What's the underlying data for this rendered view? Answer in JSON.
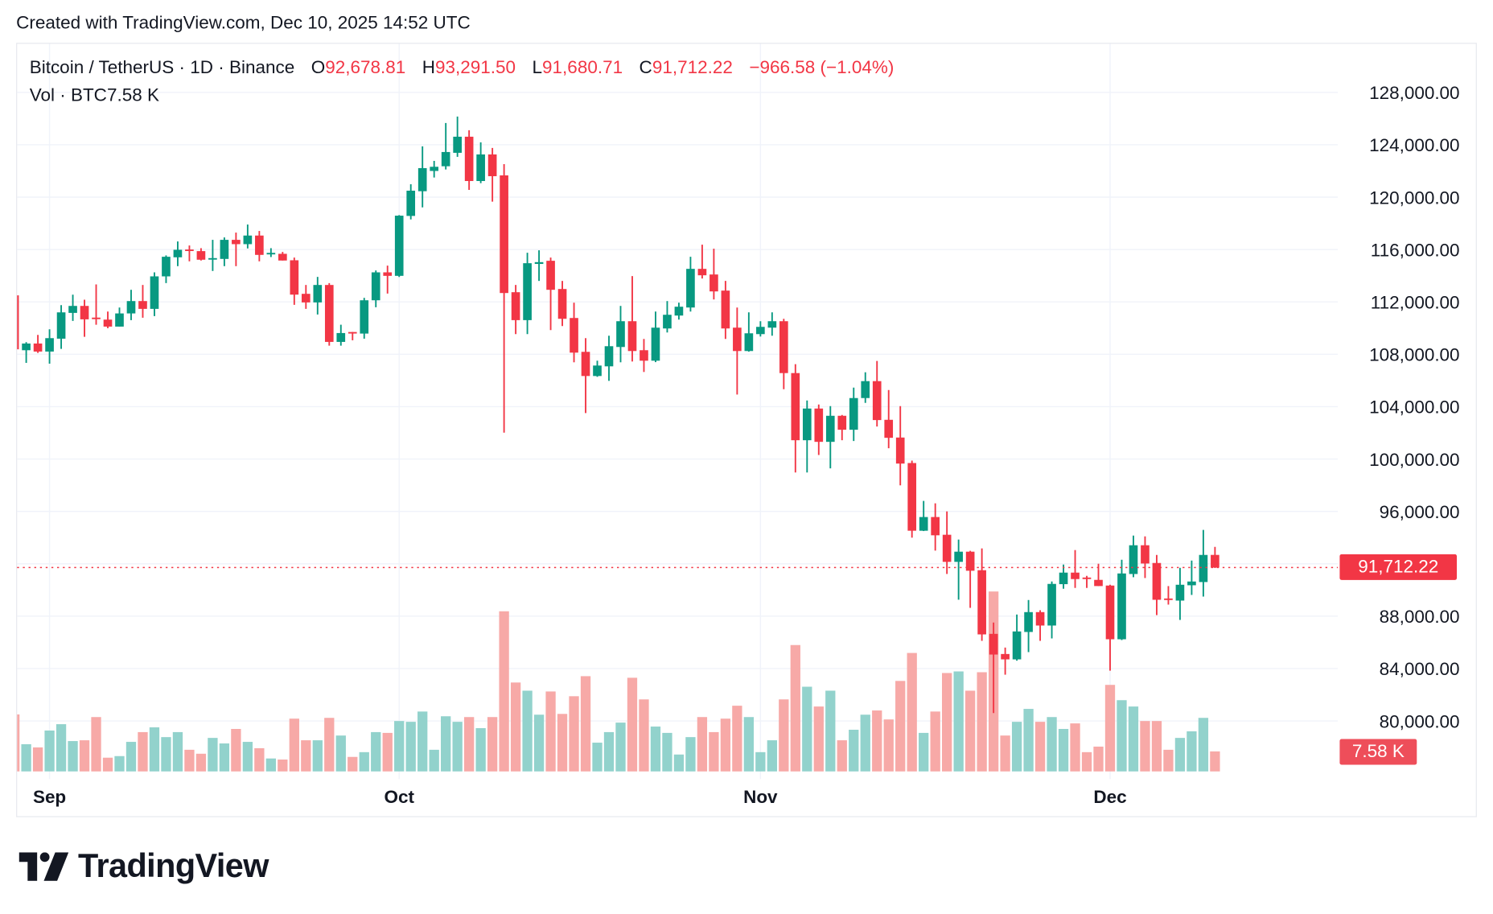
{
  "header": {
    "created_text": "Created with TradingView.com, Dec 10, 2025 14:52 UTC"
  },
  "legend": {
    "symbol": "Bitcoin / TetherUS · 1D · Binance",
    "open_label": "O",
    "open": "92,678.81",
    "high_label": "H",
    "high": "93,291.50",
    "low_label": "L",
    "low": "91,680.71",
    "close_label": "C",
    "close": "91,712.22",
    "change": "−966.58 (−1.04%)",
    "volume_label": "Vol · BTC",
    "volume": "7.58 K"
  },
  "price_tag": "91,712.22",
  "volume_tag": "7.58 K",
  "logo": {
    "text": "TradingView",
    "icon": "tradingview-logo-icon"
  },
  "colors": {
    "up": "#089981",
    "down": "#f23645",
    "up_volume": "#92d2cc",
    "down_volume": "#f7a9a7",
    "grid": "#f0f3fa"
  },
  "chart_data": {
    "type": "candlestick",
    "title": "",
    "interval": "1D",
    "y_axis": {
      "position": "right",
      "range": [
        78000,
        131000
      ],
      "tick_labels": [
        "128,000.00",
        "124,000.00",
        "120,000.00",
        "116,000.00",
        "112,000.00",
        "108,000.00",
        "104,000.00",
        "100,000.00",
        "96,000.00",
        "88,000.00",
        "84,000.00",
        "80,000.00"
      ]
    },
    "x_ticks": [
      {
        "label": "Sep",
        "date": "2025-09-01"
      },
      {
        "label": "Oct",
        "date": "2025-10-01"
      },
      {
        "label": "Nov",
        "date": "2025-11-01"
      },
      {
        "label": "Dec",
        "date": "2025-12-01"
      }
    ],
    "grid": true,
    "last_price": 91712.22,
    "columns": [
      "date",
      "open",
      "high",
      "low",
      "close",
      "volume_k"
    ],
    "rows": [
      [
        "2025-08-29",
        112500,
        112650,
        107350,
        108380,
        21.6
      ],
      [
        "2025-08-30",
        108309,
        108925,
        107345,
        108822,
        10.3
      ],
      [
        "2025-08-31",
        108822,
        109478,
        108104,
        108207,
        9.1
      ],
      [
        "2025-09-01",
        108207,
        109909,
        107284,
        109232,
        15.5
      ],
      [
        "2025-09-02",
        109191,
        111755,
        108412,
        111201,
        17.9
      ],
      [
        "2025-09-03",
        111160,
        112555,
        110545,
        111693,
        11.5
      ],
      [
        "2025-09-04",
        111693,
        112165,
        109335,
        110668,
        11.8
      ],
      [
        "2025-09-05",
        110800,
        113334,
        110258,
        110700,
        20.6
      ],
      [
        "2025-09-06",
        110647,
        111263,
        109991,
        110114,
        5.2
      ],
      [
        "2025-09-07",
        110114,
        111570,
        110114,
        111119,
        5.8
      ],
      [
        "2025-09-08",
        111119,
        112924,
        110606,
        112063,
        11.2
      ],
      [
        "2025-09-09",
        112063,
        113293,
        110791,
        111468,
        14.9
      ],
      [
        "2025-09-10",
        111468,
        114257,
        110914,
        113950,
        16.7
      ],
      [
        "2025-09-11",
        113950,
        115550,
        113437,
        115447,
        13.0
      ],
      [
        "2025-09-12",
        115406,
        116616,
        114729,
        115980,
        14.9
      ],
      [
        "2025-09-13",
        116000,
        116308,
        115098,
        115980,
        8.2
      ],
      [
        "2025-09-14",
        115878,
        116103,
        115160,
        115221,
        6.7
      ],
      [
        "2025-09-15",
        115300,
        116739,
        114360,
        115344,
        12.7
      ],
      [
        "2025-09-16",
        115282,
        116924,
        114729,
        116739,
        10.6
      ],
      [
        "2025-09-17",
        116739,
        117293,
        114729,
        116410,
        16.1
      ],
      [
        "2025-09-18",
        116410,
        117908,
        116083,
        117067,
        11.2
      ],
      [
        "2025-09-19",
        117067,
        117416,
        115098,
        115590,
        8.8
      ],
      [
        "2025-09-20",
        115700,
        116103,
        115426,
        115744,
        4.9
      ],
      [
        "2025-09-21",
        115672,
        115816,
        115160,
        115160,
        4.5
      ],
      [
        "2025-09-22",
        115180,
        115385,
        111775,
        112555,
        20.0
      ],
      [
        "2025-09-23",
        112616,
        113293,
        111468,
        111960,
        11.8
      ],
      [
        "2025-09-24",
        111960,
        113909,
        111037,
        113293,
        11.8
      ],
      [
        "2025-09-25",
        113293,
        113437,
        108658,
        108945,
        20.3
      ],
      [
        "2025-09-26",
        108945,
        110258,
        108658,
        109622,
        13.6
      ],
      [
        "2025-09-27",
        109700,
        109704,
        109068,
        109600,
        5.5
      ],
      [
        "2025-09-28",
        109581,
        112309,
        109191,
        112124,
        7.3
      ],
      [
        "2025-09-29",
        112124,
        114401,
        111591,
        114257,
        14.9
      ],
      [
        "2025-09-30",
        114257,
        114770,
        112637,
        113990,
        14.6
      ],
      [
        "2025-10-01",
        113990,
        118626,
        113900,
        118585,
        19.1
      ],
      [
        "2025-10-02",
        118565,
        120985,
        118298,
        120493,
        18.8
      ],
      [
        "2025-10-03",
        120452,
        123877,
        119221,
        122216,
        22.7
      ],
      [
        "2025-10-04",
        122000,
        122769,
        121498,
        122318,
        8.2
      ],
      [
        "2025-10-05",
        122359,
        125661,
        122113,
        123446,
        20.9
      ],
      [
        "2025-10-06",
        123385,
        126154,
        123077,
        124615,
        18.8
      ],
      [
        "2025-10-07",
        124615,
        125108,
        120554,
        121231,
        20.6
      ],
      [
        "2025-10-08",
        121231,
        124185,
        121067,
        123262,
        16.4
      ],
      [
        "2025-10-09",
        123262,
        123754,
        119652,
        121600,
        20.6
      ],
      [
        "2025-10-10",
        121662,
        122523,
        102013,
        112678,
        60.7
      ],
      [
        "2025-10-11",
        112740,
        113294,
        109540,
        110607,
        33.7
      ],
      [
        "2025-10-12",
        110607,
        115755,
        109540,
        114955,
        30.6
      ],
      [
        "2025-10-13",
        114900,
        115940,
        113601,
        115037,
        21.5
      ],
      [
        "2025-10-14",
        115140,
        115386,
        109848,
        112924,
        30.3
      ],
      [
        "2025-10-15",
        112986,
        113601,
        110155,
        110709,
        21.8
      ],
      [
        "2025-10-16",
        110771,
        111940,
        107387,
        108125,
        28.5
      ],
      [
        "2025-10-17",
        108186,
        109232,
        103510,
        106340,
        36.1
      ],
      [
        "2025-10-18",
        106340,
        107510,
        106278,
        107140,
        10.9
      ],
      [
        "2025-10-19",
        107079,
        109417,
        105971,
        108617,
        14.9
      ],
      [
        "2025-10-20",
        108556,
        111694,
        107387,
        110525,
        18.5
      ],
      [
        "2025-10-21",
        110525,
        113971,
        107448,
        108248,
        35.5
      ],
      [
        "2025-10-22",
        108310,
        109171,
        106648,
        107510,
        27.3
      ],
      [
        "2025-10-23",
        107510,
        111263,
        107400,
        110033,
        17.0
      ],
      [
        "2025-10-24",
        109971,
        112063,
        109663,
        111017,
        14.6
      ],
      [
        "2025-10-25",
        110956,
        111940,
        110648,
        111633,
        6.4
      ],
      [
        "2025-10-26",
        111571,
        115447,
        111263,
        114524,
        13.0
      ],
      [
        "2025-10-27",
        114524,
        116370,
        113786,
        114032,
        20.6
      ],
      [
        "2025-10-28",
        114093,
        116062,
        112186,
        112801,
        14.9
      ],
      [
        "2025-10-29",
        112863,
        113601,
        109171,
        109971,
        20.0
      ],
      [
        "2025-10-30",
        110033,
        111571,
        104925,
        108248,
        24.9
      ],
      [
        "2025-10-31",
        108248,
        111202,
        108200,
        109602,
        20.6
      ],
      [
        "2025-11-01",
        109540,
        110525,
        109355,
        110094,
        7.3
      ],
      [
        "2025-11-02",
        110033,
        111202,
        109417,
        110525,
        11.8
      ],
      [
        "2025-11-03",
        110525,
        110709,
        105334,
        106564,
        27.3
      ],
      [
        "2025-11-04",
        106564,
        107241,
        98976,
        101436,
        47.9
      ],
      [
        "2025-11-05",
        101436,
        104472,
        98976,
        103857,
        32.1
      ],
      [
        "2025-11-06",
        103857,
        104165,
        100309,
        101313,
        24.6
      ],
      [
        "2025-11-07",
        101313,
        104042,
        99284,
        103303,
        30.6
      ],
      [
        "2025-11-08",
        103303,
        103365,
        101436,
        102237,
        11.8
      ],
      [
        "2025-11-09",
        102237,
        105457,
        101375,
        104657,
        15.8
      ],
      [
        "2025-11-10",
        104657,
        106626,
        104288,
        105949,
        21.5
      ],
      [
        "2025-11-11",
        105949,
        107487,
        102483,
        102975,
        23.1
      ],
      [
        "2025-11-12",
        102996,
        105272,
        100822,
        101621,
        19.7
      ],
      [
        "2025-11-13",
        101642,
        104042,
        97991,
        99653,
        34.3
      ],
      [
        "2025-11-14",
        99694,
        99878,
        93992,
        94525,
        44.9
      ],
      [
        "2025-11-15",
        94525,
        96802,
        94500,
        95571,
        14.6
      ],
      [
        "2025-11-16",
        95571,
        96617,
        93007,
        94176,
        22.7
      ],
      [
        "2025-11-17",
        94217,
        96002,
        91223,
        92146,
        37.3
      ],
      [
        "2025-11-18",
        92146,
        93848,
        89254,
        92925,
        37.9
      ],
      [
        "2025-11-19",
        92925,
        92987,
        88638,
        91469,
        30.6
      ],
      [
        "2025-11-20",
        91510,
        93171,
        86116,
        86608,
        37.6
      ],
      [
        "2025-11-21",
        86649,
        87510,
        80600,
        85070,
        68.2
      ],
      [
        "2025-11-22",
        85111,
        85603,
        83531,
        84701,
        13.6
      ],
      [
        "2025-11-23",
        84701,
        88126,
        84600,
        86834,
        18.8
      ],
      [
        "2025-11-24",
        86793,
        89233,
        85254,
        88310,
        23.7
      ],
      [
        "2025-11-25",
        88310,
        88454,
        86116,
        87285,
        18.8
      ],
      [
        "2025-11-26",
        87285,
        90649,
        86300,
        90464,
        20.6
      ],
      [
        "2025-11-27",
        90444,
        91941,
        90095,
        91326,
        16.1
      ],
      [
        "2025-11-28",
        91326,
        93048,
        90157,
        90833,
        18.2
      ],
      [
        "2025-11-29",
        90950,
        91079,
        90157,
        90900,
        7.3
      ],
      [
        "2025-11-30",
        90772,
        92003,
        90300,
        90300,
        9.4
      ],
      [
        "2025-12-01",
        90339,
        90400,
        83838,
        86237,
        32.8
      ],
      [
        "2025-12-02",
        86237,
        92308,
        86176,
        91262,
        27.0
      ],
      [
        "2025-12-03",
        91221,
        94154,
        90975,
        93416,
        24.6
      ],
      [
        "2025-12-04",
        93416,
        94093,
        90913,
        92021,
        19.1
      ],
      [
        "2025-12-05",
        92062,
        92677,
        88083,
        89252,
        19.1
      ],
      [
        "2025-12-06",
        89350,
        90298,
        88883,
        89300,
        8.2
      ],
      [
        "2025-12-07",
        89190,
        91693,
        87714,
        90400,
        12.7
      ],
      [
        "2025-12-08",
        90360,
        92246,
        89621,
        90647,
        15.2
      ],
      [
        "2025-12-09",
        90606,
        94585,
        89498,
        92677,
        20.3
      ],
      [
        "2025-12-10",
        92678.81,
        93291.5,
        91680.71,
        91712.22,
        7.58
      ]
    ]
  }
}
